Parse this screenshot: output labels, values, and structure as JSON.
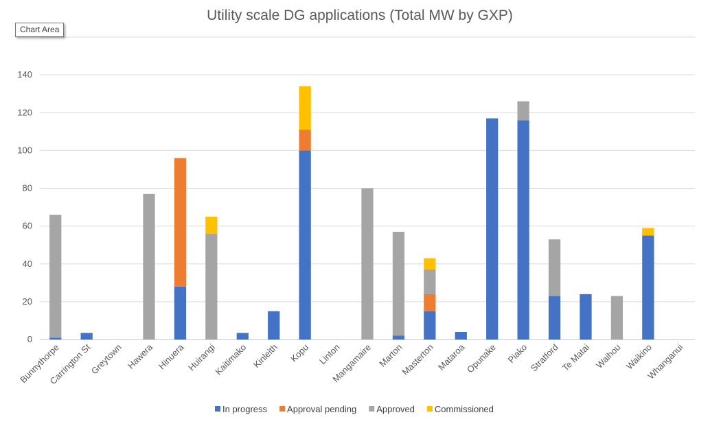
{
  "tooltip": "Chart Area",
  "chart_data": {
    "type": "bar",
    "stacked": true,
    "title": "Utility scale DG applications (Total MW by GXP)",
    "xlabel": "",
    "ylabel": "",
    "ylim": [
      0,
      160
    ],
    "yticks": [
      0,
      20,
      40,
      60,
      80,
      100,
      120,
      140
    ],
    "grid": true,
    "legend_position": "bottom",
    "categories": [
      "Bunnythorpe",
      "Carrington St",
      "Greytown",
      "Hawera",
      "Hinuera",
      "Huirangi",
      "Kaitimako",
      "Kinleith",
      "Kopu",
      "Linton",
      "Mangamaire",
      "Marton",
      "Masterton",
      "Mataroa",
      "Opunake",
      "Piako",
      "Stratford",
      "Te Matai",
      "Waihou",
      "Waikino",
      "Whanganui"
    ],
    "series": [
      {
        "name": "In progress",
        "color": "#4472C4",
        "values": [
          1,
          3.5,
          0,
          0,
          28,
          0,
          3.5,
          15,
          100,
          0,
          0,
          2,
          15,
          4,
          117,
          116,
          23,
          24,
          0,
          55,
          0
        ]
      },
      {
        "name": "Approval pending",
        "color": "#ED7D31",
        "values": [
          0,
          0,
          0,
          0,
          68,
          0,
          0,
          0,
          11,
          0,
          0,
          0,
          9,
          0,
          0,
          0,
          0,
          0,
          0,
          0,
          0
        ]
      },
      {
        "name": "Approved",
        "color": "#A5A5A5",
        "values": [
          65,
          0,
          0,
          77,
          0,
          56,
          0,
          0,
          0,
          0,
          80,
          55,
          13,
          0,
          0,
          10,
          30,
          0,
          23,
          0,
          0
        ]
      },
      {
        "name": "Commissioned",
        "color": "#FFC000",
        "values": [
          0,
          0,
          0,
          0,
          0,
          9,
          0,
          0,
          23,
          0,
          0,
          0,
          6,
          0,
          0,
          0,
          0,
          0,
          0,
          4,
          0
        ]
      }
    ]
  }
}
